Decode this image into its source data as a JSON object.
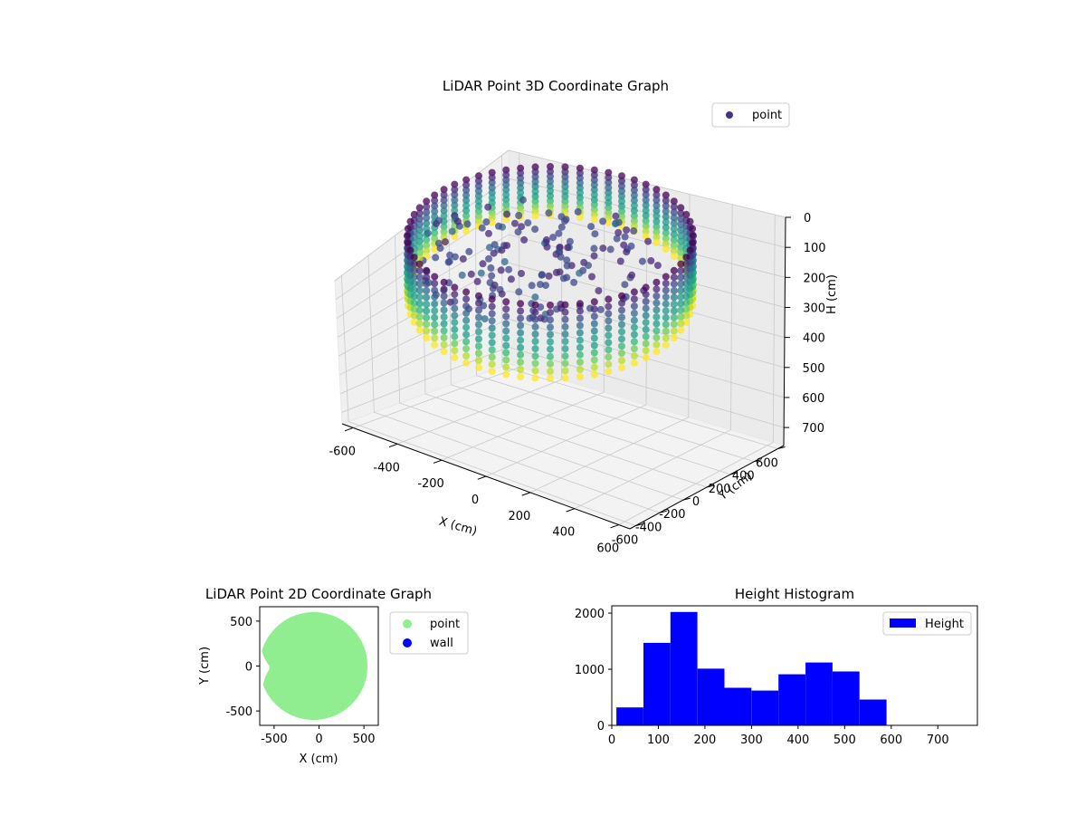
{
  "chart_data": [
    {
      "type": "scatter3d",
      "title": "LiDAR Point 3D Coordinate Graph",
      "xlabel": "X (cm)",
      "ylabel": "Y (cm)",
      "zlabel": "H (cm)",
      "x_ticks": [
        -600,
        -400,
        -200,
        0,
        200,
        400,
        600
      ],
      "y_ticks": [
        -600,
        -400,
        -200,
        0,
        200,
        400,
        600
      ],
      "z_ticks": [
        0,
        100,
        200,
        300,
        400,
        500,
        600,
        700
      ],
      "xlim": [
        -650,
        650
      ],
      "ylim": [
        -650,
        650
      ],
      "zlim": [
        760,
        0
      ],
      "z_inverted": true,
      "colormap": "viridis",
      "legend": [
        {
          "name": "point",
          "color": "#46327e"
        }
      ],
      "legend_position": "upper right",
      "grid": true,
      "shape_description": "ring-shaped wall of points, radius about 600 cm, heights about 0 to 700 cm",
      "ring_radius_cm": 600,
      "height_range_cm": [
        0,
        700
      ]
    },
    {
      "type": "scatter",
      "title": "LiDAR Point 2D Coordinate Graph",
      "xlabel": "X (cm)",
      "ylabel": "Y (cm)",
      "x_ticks": [
        -500,
        0,
        500
      ],
      "y_ticks": [
        -500,
        0,
        500
      ],
      "xlim": [
        -660,
        660
      ],
      "ylim": [
        -660,
        660
      ],
      "series": [
        {
          "name": "point",
          "color": "#90ee90"
        },
        {
          "name": "wall",
          "color": "#0000ff"
        }
      ],
      "legend_position": "outside right",
      "shape_description": "filled disc of points, radius about 600 cm, with a notch on the left side"
    },
    {
      "type": "bar",
      "subtype": "histogram",
      "title": "Height Histogram",
      "x_ticks": [
        0,
        100,
        200,
        300,
        400,
        500,
        600,
        700
      ],
      "y_ticks": [
        0,
        1000,
        2000
      ],
      "xlim": [
        0,
        785
      ],
      "ylim": [
        0,
        2130
      ],
      "bin_edges": [
        10,
        68,
        126,
        184,
        242,
        300,
        358,
        416,
        474,
        532,
        590
      ],
      "values": [
        320,
        1470,
        2020,
        1010,
        670,
        620,
        910,
        1120,
        960,
        460
      ],
      "series": [
        {
          "name": "Height",
          "color": "#0000ff"
        }
      ],
      "legend_position": "upper right"
    }
  ]
}
